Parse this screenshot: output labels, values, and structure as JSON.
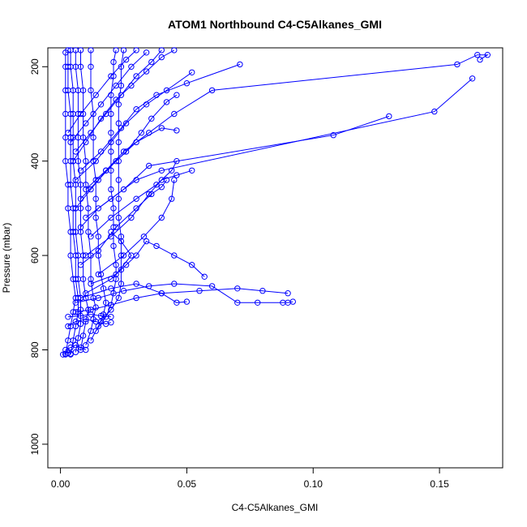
{
  "chart_data": {
    "type": "line",
    "title": "ATOM1 Northbound C4-C5Alkanes_GMI",
    "xlabel": "C4-C5Alkanes_GMI",
    "ylabel": "Pressure (mbar)",
    "xlim": [
      -0.005,
      0.175
    ],
    "ylim": [
      1050,
      160
    ],
    "y_reversed": true,
    "xticks": [
      0.0,
      0.05,
      0.1,
      0.15
    ],
    "xtick_labels": [
      "0.00",
      "0.05",
      "0.10",
      "0.15"
    ],
    "yticks": [
      200,
      400,
      600,
      800,
      1000
    ],
    "ytick_labels": [
      "200",
      "400",
      "600",
      "800",
      "1000"
    ],
    "grid": false,
    "series_color": "#0000ff",
    "marker": "open-circle",
    "series": [
      {
        "points": [
          [
            0.002,
            810
          ],
          [
            0.003,
            780
          ],
          [
            0.004,
            750
          ],
          [
            0.005,
            720
          ],
          [
            0.006,
            690
          ],
          [
            0.005,
            650
          ],
          [
            0.004,
            600
          ],
          [
            0.004,
            550
          ],
          [
            0.003,
            500
          ],
          [
            0.003,
            450
          ],
          [
            0.002,
            400
          ],
          [
            0.002,
            350
          ],
          [
            0.002,
            300
          ],
          [
            0.002,
            250
          ],
          [
            0.002,
            200
          ],
          [
            0.002,
            170
          ]
        ]
      },
      {
        "points": [
          [
            0.004,
            810
          ],
          [
            0.005,
            780
          ],
          [
            0.006,
            750
          ],
          [
            0.007,
            720
          ],
          [
            0.007,
            690
          ],
          [
            0.006,
            650
          ],
          [
            0.006,
            600
          ],
          [
            0.005,
            550
          ],
          [
            0.005,
            500
          ],
          [
            0.004,
            450
          ],
          [
            0.004,
            400
          ],
          [
            0.004,
            350
          ],
          [
            0.004,
            300
          ],
          [
            0.003,
            250
          ],
          [
            0.003,
            200
          ],
          [
            0.003,
            165
          ]
        ]
      },
      {
        "points": [
          [
            0.006,
            805
          ],
          [
            0.007,
            775
          ],
          [
            0.008,
            745
          ],
          [
            0.008,
            715
          ],
          [
            0.008,
            690
          ],
          [
            0.007,
            650
          ],
          [
            0.007,
            600
          ],
          [
            0.006,
            550
          ],
          [
            0.006,
            500
          ],
          [
            0.006,
            450
          ],
          [
            0.005,
            400
          ],
          [
            0.005,
            350
          ],
          [
            0.005,
            300
          ],
          [
            0.005,
            250
          ],
          [
            0.004,
            200
          ],
          [
            0.004,
            165
          ]
        ]
      },
      {
        "points": [
          [
            0.008,
            800
          ],
          [
            0.009,
            770
          ],
          [
            0.01,
            740
          ],
          [
            0.011,
            715
          ],
          [
            0.01,
            690
          ],
          [
            0.009,
            650
          ],
          [
            0.009,
            600
          ],
          [
            0.008,
            550
          ],
          [
            0.008,
            500
          ],
          [
            0.008,
            450
          ],
          [
            0.007,
            400
          ],
          [
            0.007,
            350
          ],
          [
            0.007,
            300
          ],
          [
            0.007,
            250
          ],
          [
            0.006,
            200
          ],
          [
            0.006,
            165
          ]
        ]
      },
      {
        "points": [
          [
            0.01,
            790
          ],
          [
            0.012,
            760
          ],
          [
            0.013,
            735
          ],
          [
            0.014,
            710
          ],
          [
            0.013,
            690
          ],
          [
            0.012,
            650
          ],
          [
            0.012,
            600
          ],
          [
            0.011,
            550
          ],
          [
            0.011,
            500
          ],
          [
            0.01,
            450
          ],
          [
            0.01,
            400
          ],
          [
            0.009,
            350
          ],
          [
            0.009,
            300
          ],
          [
            0.009,
            250
          ],
          [
            0.008,
            200
          ],
          [
            0.008,
            165
          ]
        ]
      },
      {
        "points": [
          [
            0.012,
            780
          ],
          [
            0.015,
            750
          ],
          [
            0.017,
            725
          ],
          [
            0.018,
            700
          ],
          [
            0.017,
            670
          ],
          [
            0.016,
            640
          ],
          [
            0.015,
            600
          ],
          [
            0.015,
            560
          ],
          [
            0.014,
            520
          ],
          [
            0.014,
            480
          ],
          [
            0.014,
            440
          ],
          [
            0.013,
            400
          ],
          [
            0.013,
            350
          ],
          [
            0.013,
            300
          ],
          [
            0.012,
            250
          ],
          [
            0.012,
            200
          ],
          [
            0.012,
            165
          ]
        ]
      },
      {
        "points": [
          [
            0.014,
            760
          ],
          [
            0.018,
            730
          ],
          [
            0.02,
            705
          ],
          [
            0.021,
            680
          ],
          [
            0.022,
            650
          ],
          [
            0.022,
            620
          ],
          [
            0.021,
            580
          ],
          [
            0.021,
            540
          ],
          [
            0.021,
            500
          ],
          [
            0.02,
            460
          ],
          [
            0.02,
            420
          ],
          [
            0.02,
            380
          ],
          [
            0.02,
            340
          ],
          [
            0.02,
            300
          ],
          [
            0.02,
            260
          ],
          [
            0.021,
            220
          ],
          [
            0.021,
            190
          ],
          [
            0.022,
            165
          ]
        ]
      },
      {
        "points": [
          [
            0.016,
            740
          ],
          [
            0.02,
            715
          ],
          [
            0.023,
            690
          ],
          [
            0.024,
            660
          ],
          [
            0.024,
            630
          ],
          [
            0.024,
            600
          ],
          [
            0.024,
            560
          ],
          [
            0.023,
            520
          ],
          [
            0.023,
            480
          ],
          [
            0.023,
            440
          ],
          [
            0.023,
            400
          ],
          [
            0.023,
            360
          ],
          [
            0.023,
            320
          ],
          [
            0.023,
            280
          ],
          [
            0.024,
            240
          ],
          [
            0.024,
            200
          ],
          [
            0.025,
            165
          ]
        ]
      },
      {
        "points": [
          [
            0.006,
            720
          ],
          [
            0.012,
            715
          ],
          [
            0.02,
            705
          ],
          [
            0.03,
            690
          ],
          [
            0.04,
            680
          ],
          [
            0.055,
            675
          ],
          [
            0.07,
            670
          ],
          [
            0.08,
            675
          ],
          [
            0.09,
            680
          ]
        ]
      },
      {
        "points": [
          [
            0.006,
            700
          ],
          [
            0.015,
            690
          ],
          [
            0.025,
            675
          ],
          [
            0.035,
            665
          ],
          [
            0.045,
            660
          ],
          [
            0.06,
            665
          ],
          [
            0.07,
            700
          ],
          [
            0.078,
            700
          ],
          [
            0.088,
            700
          ],
          [
            0.09,
            700
          ],
          [
            0.092,
            698
          ]
        ]
      },
      {
        "points": [
          [
            0.008,
            690
          ],
          [
            0.02,
            670
          ],
          [
            0.03,
            660
          ],
          [
            0.04,
            680
          ],
          [
            0.046,
            700
          ],
          [
            0.05,
            698
          ]
        ]
      },
      {
        "points": [
          [
            0.01,
            680
          ],
          [
            0.02,
            650
          ],
          [
            0.026,
            620
          ],
          [
            0.03,
            600
          ],
          [
            0.034,
            570
          ],
          [
            0.038,
            580
          ],
          [
            0.045,
            600
          ],
          [
            0.052,
            620
          ],
          [
            0.057,
            645
          ]
        ]
      },
      {
        "points": [
          [
            0.012,
            660
          ],
          [
            0.022,
            640
          ],
          [
            0.028,
            600
          ],
          [
            0.024,
            570
          ],
          [
            0.02,
            550
          ]
        ]
      },
      {
        "points": [
          [
            0.015,
            640
          ],
          [
            0.025,
            600
          ],
          [
            0.033,
            560
          ],
          [
            0.04,
            520
          ],
          [
            0.044,
            480
          ],
          [
            0.045,
            440
          ]
        ]
      },
      {
        "points": [
          [
            0.008,
            620
          ],
          [
            0.015,
            590
          ],
          [
            0.022,
            540
          ],
          [
            0.03,
            500
          ],
          [
            0.036,
            470
          ],
          [
            0.04,
            455
          ],
          [
            0.042,
            440
          ]
        ]
      },
      {
        "points": [
          [
            0.01,
            600
          ],
          [
            0.02,
            560
          ],
          [
            0.028,
            520
          ],
          [
            0.035,
            470
          ],
          [
            0.04,
            440
          ],
          [
            0.046,
            430
          ],
          [
            0.052,
            420
          ]
        ]
      },
      {
        "points": [
          [
            0.012,
            560
          ],
          [
            0.02,
            520
          ],
          [
            0.03,
            480
          ],
          [
            0.038,
            450
          ],
          [
            0.044,
            420
          ],
          [
            0.046,
            400
          ]
        ]
      },
      {
        "points": [
          [
            0.008,
            540
          ],
          [
            0.015,
            500
          ],
          [
            0.025,
            460
          ],
          [
            0.035,
            410
          ],
          [
            0.108,
            345
          ],
          [
            0.13,
            305
          ]
        ]
      },
      {
        "points": [
          [
            0.01,
            520
          ],
          [
            0.02,
            480
          ],
          [
            0.03,
            440
          ],
          [
            0.04,
            420
          ],
          [
            0.148,
            295
          ],
          [
            0.163,
            225
          ]
        ]
      },
      {
        "points": [
          [
            0.006,
            500
          ],
          [
            0.012,
            460
          ],
          [
            0.018,
            420
          ],
          [
            0.025,
            380
          ],
          [
            0.035,
            340
          ],
          [
            0.045,
            300
          ],
          [
            0.06,
            250
          ],
          [
            0.157,
            195
          ],
          [
            0.165,
            175
          ],
          [
            0.169,
            175
          ],
          [
            0.166,
            185
          ]
        ]
      },
      {
        "points": [
          [
            0.008,
            480
          ],
          [
            0.015,
            440
          ],
          [
            0.022,
            400
          ],
          [
            0.03,
            360
          ],
          [
            0.04,
            330
          ],
          [
            0.046,
            335
          ]
        ]
      },
      {
        "points": [
          [
            0.01,
            460
          ],
          [
            0.018,
            420
          ],
          [
            0.026,
            380
          ],
          [
            0.032,
            340
          ],
          [
            0.036,
            310
          ],
          [
            0.042,
            275
          ],
          [
            0.046,
            260
          ]
        ]
      },
      {
        "points": [
          [
            0.006,
            440
          ],
          [
            0.014,
            400
          ],
          [
            0.02,
            360
          ],
          [
            0.026,
            320
          ],
          [
            0.034,
            280
          ],
          [
            0.042,
            250
          ],
          [
            0.052,
            212
          ]
        ]
      },
      {
        "points": [
          [
            0.008,
            420
          ],
          [
            0.016,
            380
          ],
          [
            0.024,
            330
          ],
          [
            0.03,
            290
          ],
          [
            0.038,
            260
          ],
          [
            0.05,
            235
          ],
          [
            0.071,
            195
          ]
        ]
      },
      {
        "points": [
          [
            0.005,
            400
          ],
          [
            0.01,
            360
          ],
          [
            0.016,
            310
          ],
          [
            0.022,
            270
          ],
          [
            0.028,
            240
          ],
          [
            0.034,
            210
          ],
          [
            0.04,
            180
          ],
          [
            0.045,
            165
          ]
        ]
      },
      {
        "points": [
          [
            0.006,
            380
          ],
          [
            0.012,
            340
          ],
          [
            0.018,
            300
          ],
          [
            0.024,
            260
          ],
          [
            0.03,
            220
          ],
          [
            0.036,
            190
          ],
          [
            0.04,
            165
          ]
        ]
      },
      {
        "points": [
          [
            0.004,
            360
          ],
          [
            0.01,
            320
          ],
          [
            0.016,
            280
          ],
          [
            0.022,
            240
          ],
          [
            0.028,
            200
          ],
          [
            0.034,
            170
          ]
        ]
      },
      {
        "points": [
          [
            0.003,
            340
          ],
          [
            0.008,
            300
          ],
          [
            0.014,
            260
          ],
          [
            0.02,
            220
          ],
          [
            0.026,
            185
          ],
          [
            0.03,
            165
          ]
        ]
      },
      {
        "points": [
          [
            0.003,
            750
          ],
          [
            0.006,
            740
          ],
          [
            0.01,
            735
          ],
          [
            0.014,
            740
          ],
          [
            0.018,
            745
          ],
          [
            0.02,
            742
          ]
        ]
      },
      {
        "points": [
          [
            0.003,
            730
          ],
          [
            0.008,
            728
          ],
          [
            0.012,
            725
          ],
          [
            0.016,
            728
          ],
          [
            0.02,
            730
          ]
        ]
      },
      {
        "points": [
          [
            0.002,
            800
          ],
          [
            0.004,
            795
          ],
          [
            0.006,
            790
          ],
          [
            0.008,
            795
          ],
          [
            0.01,
            800
          ]
        ]
      },
      {
        "points": [
          [
            0.001,
            810
          ],
          [
            0.002,
            808
          ],
          [
            0.003,
            806
          ],
          [
            0.004,
            808
          ]
        ]
      }
    ]
  }
}
